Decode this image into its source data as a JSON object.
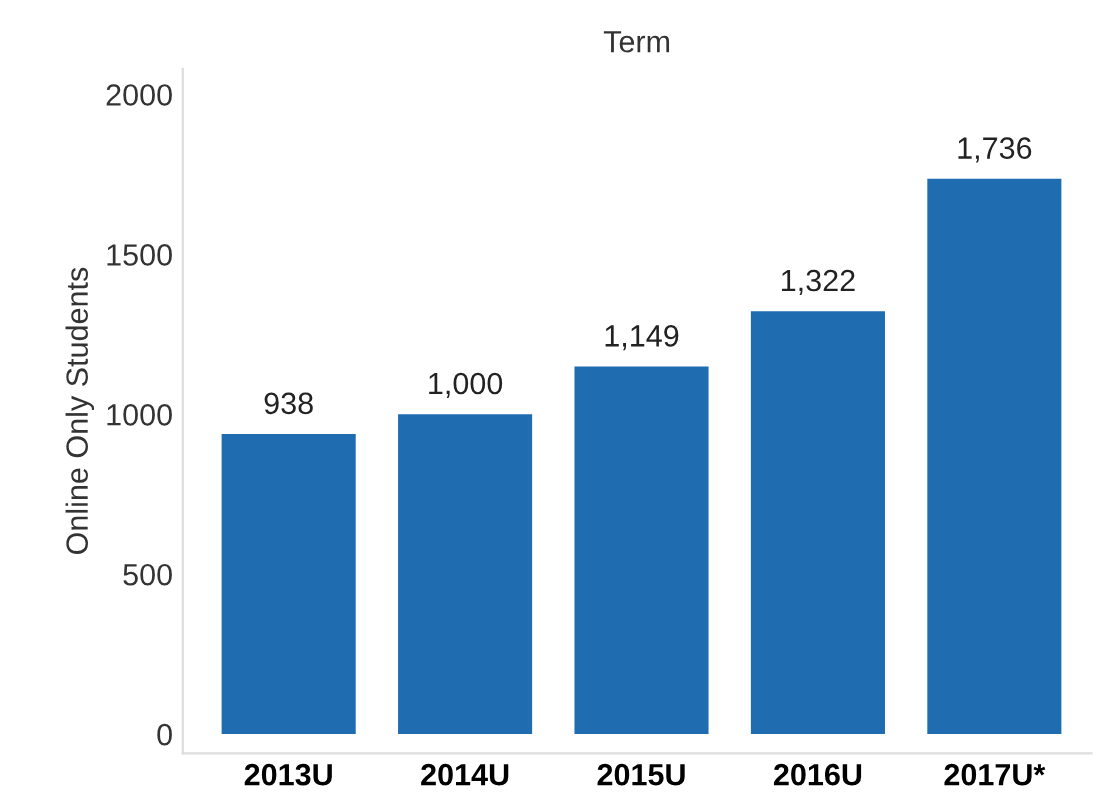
{
  "chart_data": {
    "type": "bar",
    "title": "Term",
    "ylabel": "Online Only Students",
    "categories": [
      "2013U",
      "2014U",
      "2015U",
      "2016U",
      "2017U*"
    ],
    "values": [
      938,
      1000,
      1149,
      1322,
      1736
    ],
    "value_labels": [
      "938",
      "1,000",
      "1,149",
      "1,322",
      "1,736"
    ],
    "color": "#1f6cb0",
    "ylim": [
      -60,
      2080
    ],
    "yticks": [
      0,
      500,
      1000,
      1500,
      2000
    ],
    "grid": false
  }
}
